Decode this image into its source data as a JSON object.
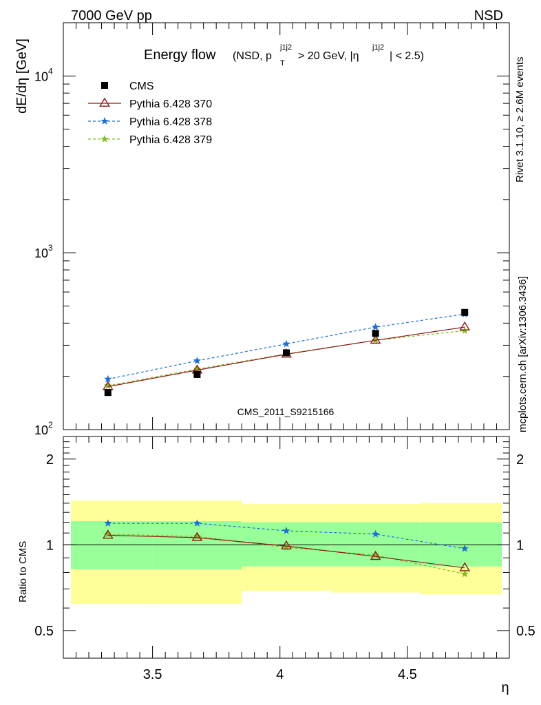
{
  "header": {
    "left": "7000 GeV pp",
    "right": "NSD",
    "watermark": "CMS_2011_S9215166",
    "side_top": "Rivet 3.1.10, ≥ 2.6M events",
    "side_bottom": "mcplots.cern.ch [arXiv:1306.3436]"
  },
  "colors": {
    "cms": "#000000",
    "p370": "#8b1a1a",
    "p378": "#1a6fd8",
    "p379": "#7fbf1f",
    "band_inner": "#99ff99",
    "band_outer": "#ffff99"
  },
  "chart_data": [
    {
      "type": "line",
      "title_main": "Energy flow",
      "title_detail": {
        "open": "(NSD, p",
        "sup1": "j1j2",
        "sub1": "T",
        "mid": " > 20 GeV, |η",
        "sup2": "j1j2",
        "close": "| < 2.5)"
      },
      "ylabel": "dE/dη [GeV]",
      "yscale": "log",
      "ylim": [
        100,
        20000
      ],
      "xlim": [
        3.15,
        4.9
      ],
      "ytick_labels": [
        {
          "base": "10",
          "exp": "2",
          "value": 100
        },
        {
          "base": "10",
          "exp": "3",
          "value": 1000
        },
        {
          "base": "10",
          "exp": "4",
          "value": 10000
        }
      ],
      "x": [
        3.325,
        3.675,
        4.025,
        4.375,
        4.725
      ],
      "series": [
        {
          "name": "CMS",
          "values": [
            162,
            205,
            272,
            350,
            460
          ]
        },
        {
          "name": "Pythia 6.428 370",
          "values": [
            175,
            217,
            267,
            320,
            380
          ]
        },
        {
          "name": "Pythia 6.428 378",
          "values": [
            193,
            245,
            305,
            380,
            450
          ]
        },
        {
          "name": "Pythia 6.428 379",
          "values": [
            177,
            220,
            268,
            320,
            363
          ]
        }
      ],
      "legend_position": "top-left"
    },
    {
      "type": "line",
      "ylabel": "Ratio to CMS",
      "yscale": "log",
      "ylim": [
        0.4,
        2.4
      ],
      "xlim": [
        3.15,
        4.9
      ],
      "xlabel": "η",
      "xtick_labels": [
        "3.5",
        "4",
        "4.5"
      ],
      "xticks": [
        3.5,
        4.0,
        4.5
      ],
      "ytick_labels": [
        "0.5",
        "1",
        "2"
      ],
      "yticks": [
        0.5,
        1,
        2
      ],
      "x": [
        3.325,
        3.675,
        4.025,
        4.375,
        4.725
      ],
      "bins": [
        [
          3.15,
          3.5
        ],
        [
          3.5,
          3.85
        ],
        [
          3.85,
          4.2
        ],
        [
          4.2,
          4.55
        ],
        [
          4.55,
          4.9
        ]
      ],
      "band_inner": [
        [
          0.82,
          1.21
        ],
        [
          0.82,
          1.21
        ],
        [
          0.84,
          1.2
        ],
        [
          0.84,
          1.2
        ],
        [
          0.84,
          1.2
        ]
      ],
      "band_outer": [
        [
          0.62,
          1.43
        ],
        [
          0.62,
          1.43
        ],
        [
          0.69,
          1.39
        ],
        [
          0.68,
          1.39
        ],
        [
          0.67,
          1.4
        ]
      ],
      "series": [
        {
          "name": "Pythia 6.428 370",
          "values": [
            1.08,
            1.06,
            0.99,
            0.91,
            0.83
          ]
        },
        {
          "name": "Pythia 6.428 378",
          "values": [
            1.19,
            1.19,
            1.12,
            1.09,
            0.97
          ]
        },
        {
          "name": "Pythia 6.428 379",
          "values": [
            1.09,
            1.07,
            0.98,
            0.92,
            0.79
          ]
        }
      ]
    }
  ]
}
